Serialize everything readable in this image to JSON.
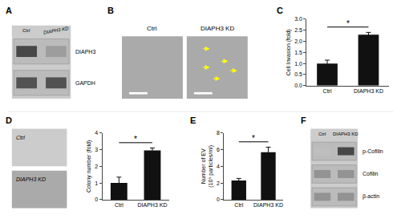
{
  "chart_data": [
    {
      "type": "blot",
      "title": "A",
      "categories": [
        "Ctrl",
        "DIAPH3 KD"
      ],
      "annotations": [
        "DIAPH3",
        "GAPDH"
      ]
    },
    {
      "type": "image",
      "title": "B",
      "categories": [
        "Ctrl",
        "DIAPH3 KD"
      ]
    },
    {
      "type": "bar",
      "title": "C",
      "categories": [
        "Ctrl",
        "DIAPH3 KD"
      ],
      "values": [
        1.0,
        2.3
      ],
      "errors": [
        0.15,
        0.1
      ],
      "color": "#111111",
      "ylabel": "Cell Invasion (fold)",
      "ylim": [
        0,
        3
      ],
      "yticks": [
        {
          "value": 0,
          "label": "0.0"
        },
        0.5,
        {
          "value": 1.0,
          "label": "1.0"
        },
        1.5,
        {
          "value": 2.0,
          "label": "2.0"
        },
        2.5,
        {
          "value": 3.0,
          "label": "3.0"
        }
      ],
      "grid": false,
      "annotations": [
        "*"
      ]
    },
    {
      "type": "image",
      "title": "D",
      "categories": [
        "Ctrl",
        "DIAPH3 KD"
      ]
    },
    {
      "type": "bar",
      "categories": [
        "Ctrl",
        "DIAPH3 KD"
      ],
      "values": [
        1.0,
        2.95
      ],
      "errors": [
        0.35,
        0.15
      ],
      "color": "#111111",
      "ylabel": "Colony number (fold)",
      "ylim": [
        0,
        4
      ],
      "yticks": [
        0,
        1,
        2,
        3,
        4
      ],
      "grid": false,
      "annotations": [
        "*"
      ]
    },
    {
      "type": "bar",
      "title": "E",
      "categories": [
        "Ctrl",
        "DIAPH3 KD"
      ],
      "values": [
        2.3,
        5.7
      ],
      "errors": [
        0.25,
        0.6
      ],
      "color": "#111111",
      "ylabel": "Number of EV\n(10⁵ particles/ml)",
      "ylim": [
        0,
        8
      ],
      "yticks": [
        0,
        2,
        4,
        6,
        8
      ],
      "grid": false,
      "annotations": [
        "*"
      ]
    },
    {
      "type": "blot",
      "title": "F",
      "categories": [
        "Ctrl",
        "DIAPH3 KD"
      ],
      "annotations": [
        "p-Cofilin",
        "Cofilin",
        "β-actin"
      ]
    }
  ]
}
